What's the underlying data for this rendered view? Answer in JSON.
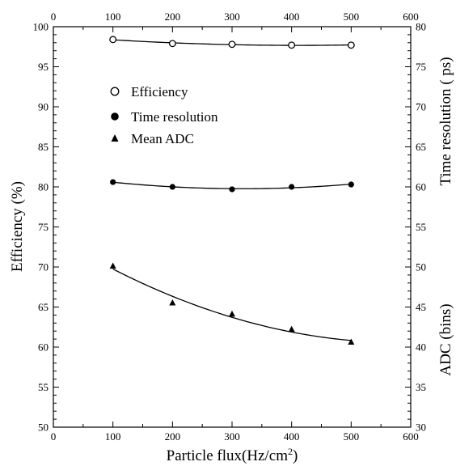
{
  "chart_data": {
    "type": "scatter",
    "xlabel": "Particle flux(Hz/cm",
    "xlabel_sup": "2",
    "xlabel_end": ")",
    "ylabel_left": "Efficiency (%)",
    "ylabel_right_top": "Time resolution ( ps)",
    "ylabel_right_bottom": "ADC (bins)",
    "xlim": [
      0,
      600
    ],
    "ylim_left": [
      50,
      100
    ],
    "ylim_right": [
      30,
      80
    ],
    "x_ticks": [
      "0",
      "100",
      "200",
      "300",
      "400",
      "500",
      "600"
    ],
    "y_left_ticks": [
      "50",
      "55",
      "60",
      "65",
      "70",
      "75",
      "80",
      "85",
      "90",
      "95",
      "100"
    ],
    "y_right_ticks": [
      "30",
      "35",
      "40",
      "45",
      "50",
      "55",
      "60",
      "65",
      "70",
      "75",
      "80"
    ],
    "series": [
      {
        "name": "Efficiency",
        "marker": "open-circle",
        "axis": "left",
        "x": [
          100,
          200,
          300,
          400,
          500
        ],
        "y": [
          98.4,
          97.9,
          97.8,
          97.7,
          97.7
        ]
      },
      {
        "name": "Time resolution",
        "marker": "filled-circle",
        "axis": "right",
        "x": [
          100,
          200,
          300,
          400,
          500
        ],
        "y": [
          60.6,
          60.0,
          59.7,
          60.0,
          60.3
        ]
      },
      {
        "name": "Mean ADC",
        "marker": "filled-triangle",
        "axis": "right",
        "x": [
          100,
          200,
          300,
          400,
          500
        ],
        "y": [
          50.1,
          45.5,
          44.1,
          42.2,
          40.6
        ]
      }
    ],
    "legend_position": "upper-left",
    "grid": false
  }
}
